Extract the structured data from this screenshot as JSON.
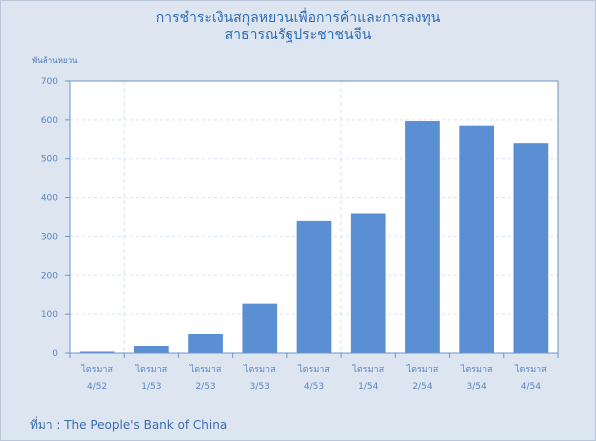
{
  "title_line1": "การชำระเงินสกุลหยวนเพื่อการค้าและการลงทุน",
  "title_line2": "สาธารณรัฐประชาชนจีน",
  "unit_label": "พันล้านหยวน",
  "source": "ที่มา :  The People's Bank of China",
  "colors": {
    "bar": "#5b8fd4",
    "plot_bg": "#ffffff",
    "axis": "#6f95c8",
    "grid": "#d8e2ee"
  },
  "chart_data": {
    "type": "bar",
    "title": "การชำระเงินสกุลหยวนเพื่อการค้าและการลงทุน สาธารณรัฐประชาชนจีน",
    "ylabel": "พันล้านหยวน",
    "xlabel": "",
    "ylim": [
      0,
      700
    ],
    "yticks": [
      0,
      100,
      200,
      300,
      400,
      500,
      600,
      700
    ],
    "categories": [
      [
        "ไตรมาส",
        "4/52"
      ],
      [
        "ไตรมาส",
        "1/53"
      ],
      [
        "ไตรมาส",
        "2/53"
      ],
      [
        "ไตรมาส",
        "3/53"
      ],
      [
        "ไตรมาส",
        "4/53"
      ],
      [
        "ไตรมาส",
        "1/54"
      ],
      [
        "ไตรมาส",
        "2/54"
      ],
      [
        "ไตรมาส",
        "3/54"
      ],
      [
        "ไตรมาส",
        "4/54"
      ]
    ],
    "values": [
      4,
      18,
      49,
      127,
      340,
      359,
      597,
      585,
      540
    ],
    "grid": "horizontal",
    "year_separators_after": [
      0,
      4
    ]
  }
}
